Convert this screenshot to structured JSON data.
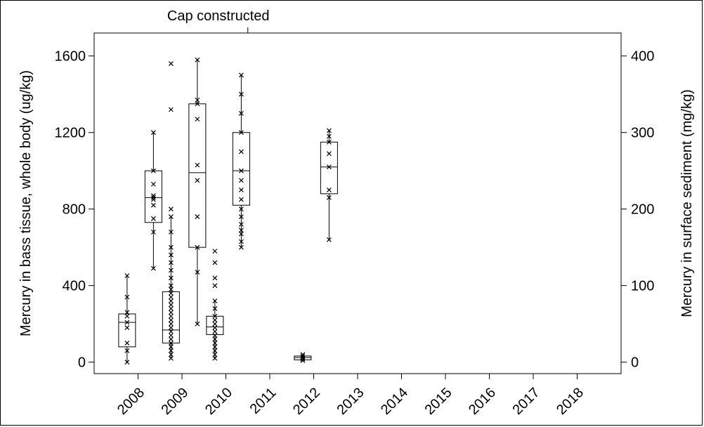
{
  "chart_data": {
    "type": "box",
    "annotation": "Cap constructed",
    "annotation_x": 2010.5,
    "ylabel_left": "Mercury in bass tissue, whole body (ug/kg)",
    "ylabel_right": "Mercury in surface sediment (mg/kg)",
    "xlim": [
      2007.0,
      2019.0
    ],
    "ylim_left": [
      -60,
      1720
    ],
    "ylim_right": [
      -15,
      430
    ],
    "left_ticks": [
      0,
      400,
      800,
      1200,
      1600
    ],
    "right_ticks": [
      0,
      100,
      200,
      300,
      400
    ],
    "x_ticks": [
      "2008",
      "2009",
      "2010",
      "2011",
      "2012",
      "2013",
      "2014",
      "2015",
      "2016",
      "2017",
      "2018"
    ],
    "x_tick_values": [
      2008,
      2009,
      2010,
      2011,
      2012,
      2013,
      2014,
      2015,
      2016,
      2017,
      2018
    ],
    "grid": false,
    "series": [
      {
        "name": "Mercury in bass tissue, whole body (ug/kg)",
        "axis": "left",
        "boxes": [
          {
            "x": 2008.35,
            "q1": 730,
            "median": 860,
            "q3": 1000,
            "whisker_low": 490,
            "whisker_high": 1200,
            "points": [
              490,
              680,
              750,
              820,
              850,
              860,
              870,
              930,
              1000,
              1200
            ]
          },
          {
            "x": 2009.35,
            "q1": 600,
            "median": 990,
            "q3": 1350,
            "whisker_low": 200,
            "whisker_high": 1580,
            "points": [
              200,
              470,
              600,
              760,
              950,
              1030,
              1270,
              1350,
              1370,
              1580
            ]
          },
          {
            "x": 2010.35,
            "q1": 820,
            "median": 1000,
            "q3": 1200,
            "whisker_low": 600,
            "whisker_high": 1500,
            "points": [
              600,
              630,
              670,
              690,
              720,
              760,
              800,
              850,
              900,
              950,
              1000,
              1100,
              1200,
              1300,
              1400,
              1500
            ]
          },
          {
            "x": 2012.35,
            "q1": 880,
            "median": 1020,
            "q3": 1150,
            "whisker_low": 640,
            "whisker_high": 1210,
            "points": [
              640,
              860,
              900,
              1020,
              1090,
              1150,
              1180,
              1210
            ]
          }
        ]
      },
      {
        "name": "Mercury in surface sediment (mg/kg)",
        "axis": "right",
        "boxes": [
          {
            "x": 2007.75,
            "q1": 20,
            "median": 52,
            "q3": 63,
            "whisker_low": 0,
            "whisker_high": 113,
            "points": [
              0,
              15,
              25,
              45,
              52,
              60,
              65,
              85,
              113
            ]
          },
          {
            "x": 2008.75,
            "q1": 25,
            "median": 42,
            "q3": 92,
            "whisker_low": 5,
            "whisker_high": 190,
            "points": [
              5,
              10,
              15,
              20,
              25,
              30,
              35,
              40,
              45,
              50,
              55,
              60,
              65,
              70,
              75,
              80,
              85,
              90,
              95,
              100,
              110,
              120,
              130,
              140,
              150,
              170,
              190,
              200,
              330,
              390
            ]
          },
          {
            "x": 2009.75,
            "q1": 36,
            "median": 46,
            "q3": 60,
            "whisker_low": 5,
            "whisker_high": 80,
            "points": [
              5,
              10,
              15,
              20,
              25,
              30,
              35,
              40,
              45,
              50,
              55,
              60,
              70,
              80,
              100,
              110,
              130,
              145
            ]
          },
          {
            "x": 2011.75,
            "q1": 3,
            "median": 6,
            "q3": 8,
            "whisker_low": 2,
            "whisker_high": 10,
            "points": [
              2,
              4,
              6,
              8,
              10
            ]
          }
        ]
      }
    ]
  }
}
